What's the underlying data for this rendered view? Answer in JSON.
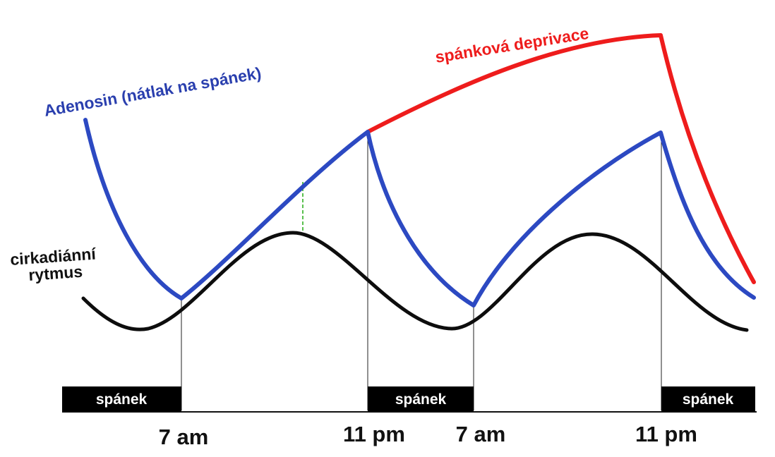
{
  "labels": {
    "adenosine": "Adenosin (nátlak na spánek)",
    "deprivation": "spánková deprivace",
    "circadian_line1": "cirkadiánní",
    "circadian_line2": "rytmus",
    "sleep": "spánek"
  },
  "time_labels": [
    "7 am",
    "11 pm",
    "7 am",
    "11 pm"
  ],
  "colors": {
    "adenosine": "#2c49c2",
    "deprivation": "#ee1c1c",
    "circadian": "#0d0d0d",
    "sleep_block": "#000000"
  }
}
